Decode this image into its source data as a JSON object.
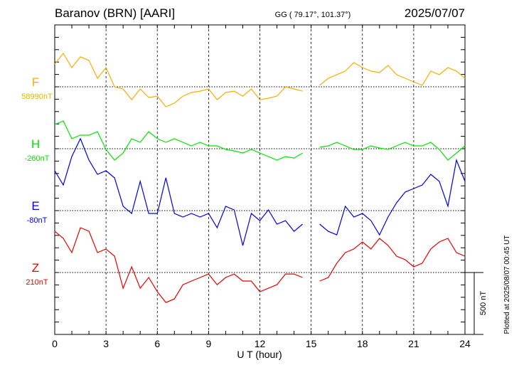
{
  "header": {
    "title": "Baranov (BRN)  [AARI]",
    "coords": "GG ( 79.17°, 101.37°)",
    "date": "2025/07/07"
  },
  "footer": {
    "plotted": "Plotted at 2025/08/07 00:45 UT"
  },
  "chart_data": {
    "type": "line",
    "title": "Baranov (BRN)  [AARI]",
    "xlabel": "U T (hour)",
    "ylabel": "",
    "xlim": [
      0,
      24
    ],
    "xticks": [
      "0",
      "3",
      "6",
      "9",
      "12",
      "15",
      "18",
      "21",
      "24"
    ],
    "scale_bar": "500 nT",
    "grid": "dotted vertical every 3 h, dotted baseline per component",
    "x": [
      0,
      0.5,
      1,
      1.5,
      2,
      2.5,
      3,
      3.5,
      4,
      4.5,
      5,
      5.5,
      6,
      6.5,
      7,
      7.5,
      8,
      8.5,
      9,
      9.5,
      10,
      10.5,
      11,
      11.5,
      12,
      12.5,
      13,
      13.5,
      14,
      14.5,
      15,
      15.5,
      16,
      16.5,
      17,
      17.5,
      18,
      18.5,
      19,
      19.5,
      20,
      20.5,
      21,
      21.5,
      22,
      22.5,
      23,
      23.5,
      24
    ],
    "series": [
      {
        "name": "F",
        "baseline_label": "58990nT",
        "color": "#f5b000",
        "values": [
          184,
          270,
          155,
          242,
          213,
          69,
          155,
          0,
          -17,
          -104,
          -17,
          -86,
          -75,
          -161,
          -132,
          -75,
          -46,
          -35,
          -17,
          -104,
          -46,
          -35,
          -75,
          -17,
          -104,
          -92,
          -75,
          0,
          -17,
          -35,
          null,
          12,
          69,
          98,
          127,
          196,
          155,
          127,
          115,
          173,
          98,
          69,
          40,
          12,
          127,
          98,
          155,
          127,
          69
        ]
      },
      {
        "name": "H",
        "baseline_label": "-260nT",
        "color": "#00e800",
        "values": [
          196,
          224,
          81,
          109,
          109,
          138,
          -6,
          -92,
          -35,
          81,
          52,
          138,
          81,
          52,
          81,
          52,
          23,
          52,
          23,
          23,
          -6,
          -17,
          -35,
          -6,
          -35,
          -63,
          -92,
          -63,
          -75,
          -35,
          null,
          12,
          23,
          52,
          23,
          -6,
          -6,
          23,
          6,
          -6,
          23,
          52,
          23,
          23,
          52,
          -6,
          -92,
          -35,
          23
        ]
      },
      {
        "name": "E",
        "baseline_label": "-80nT",
        "color": "#0000e6",
        "values": [
          322,
          207,
          437,
          581,
          408,
          293,
          322,
          265,
          35,
          -23,
          236,
          -23,
          -23,
          265,
          -23,
          -52,
          -23,
          -52,
          -23,
          -138,
          35,
          6,
          -282,
          -23,
          -81,
          6,
          -109,
          -81,
          -167,
          -109,
          null,
          -109,
          -167,
          -196,
          35,
          -52,
          -23,
          -81,
          -196,
          -52,
          63,
          150,
          178,
          207,
          293,
          236,
          35,
          408,
          236
        ]
      },
      {
        "name": "Z",
        "baseline_label": "210nT",
        "color": "#ee0000",
        "values": [
          334,
          276,
          161,
          362,
          334,
          161,
          190,
          132,
          -127,
          46,
          -127,
          -40,
          -155,
          -242,
          -213,
          -98,
          -69,
          -40,
          -12,
          -98,
          -40,
          -12,
          -69,
          -69,
          -155,
          -127,
          -98,
          -12,
          -12,
          -40,
          null,
          -69,
          -40,
          75,
          161,
          190,
          247,
          190,
          276,
          219,
          132,
          104,
          46,
          75,
          190,
          247,
          276,
          161,
          132
        ]
      }
    ]
  }
}
